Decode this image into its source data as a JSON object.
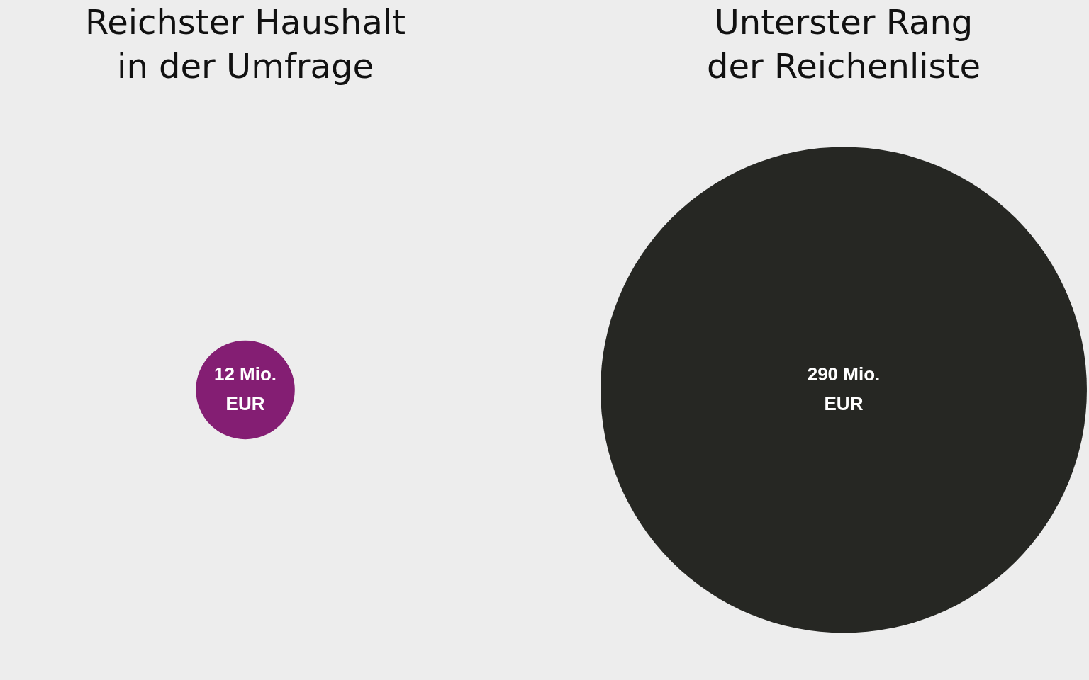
{
  "chart_data": {
    "type": "other",
    "categories": [
      "Reichster Haushalt\nin der Umfrage",
      "Unterster Rang\nder Reichenliste"
    ],
    "values": [
      12,
      290
    ],
    "colors": [
      "#841e73",
      "#262723"
    ],
    "value_labels": [
      "12 Mio.\nEUR",
      "290 Mio.\nEUR"
    ]
  }
}
